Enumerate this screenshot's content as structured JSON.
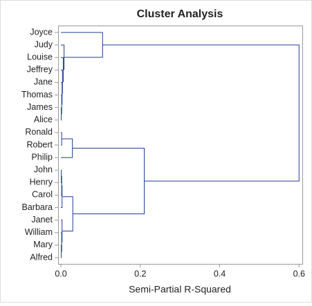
{
  "chart_data": {
    "type": "dendrogram",
    "title": "Cluster Analysis",
    "x_label": "Semi-Partial R-Squared",
    "leaves": [
      "Joyce",
      "Judy",
      "Louise",
      "Jeffrey",
      "Jane",
      "Thomas",
      "James",
      "Alice",
      "Ronald",
      "Robert",
      "Philip",
      "John",
      "Henry",
      "Carol",
      "Barbara",
      "Janet",
      "William",
      "Mary",
      "Alfred"
    ],
    "merges": [
      [
        6,
        7,
        0.001
      ],
      [
        5,
        19,
        0.002
      ],
      [
        4,
        20,
        0.003
      ],
      [
        3,
        21,
        0.004
      ],
      [
        2,
        22,
        0.006
      ],
      [
        1,
        23,
        0.008
      ],
      [
        0,
        24,
        0.105
      ],
      [
        8,
        9,
        0.002
      ],
      [
        26,
        10,
        0.029
      ],
      [
        11,
        12,
        0.001
      ],
      [
        28,
        13,
        0.002
      ],
      [
        29,
        14,
        0.003
      ],
      [
        17,
        18,
        0.001
      ],
      [
        16,
        31,
        0.002
      ],
      [
        15,
        32,
        0.003
      ],
      [
        30,
        33,
        0.03
      ],
      [
        27,
        34,
        0.21
      ],
      [
        25,
        35,
        0.6
      ]
    ],
    "color": "#1f3c93",
    "xlim": [
      -0.007,
      0.61
    ],
    "xticks": [
      {
        "value": 0,
        "label": "0.0"
      },
      0.2,
      0.4,
      0.6
    ]
  }
}
